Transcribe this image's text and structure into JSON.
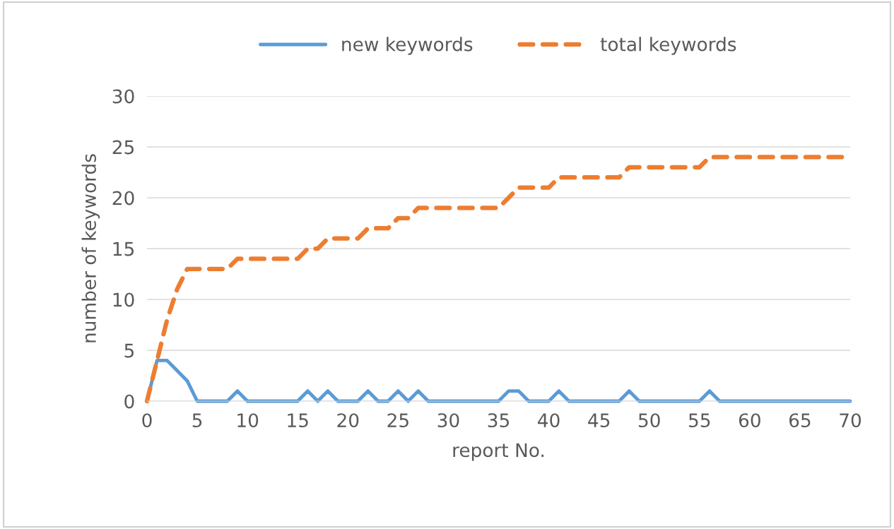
{
  "chart_data": {
    "type": "line",
    "xlabel": "report No.",
    "ylabel": "number of keywords",
    "x": [
      0,
      1,
      2,
      3,
      4,
      5,
      6,
      7,
      8,
      9,
      10,
      11,
      12,
      13,
      14,
      15,
      16,
      17,
      18,
      19,
      20,
      21,
      22,
      23,
      24,
      25,
      26,
      27,
      28,
      29,
      30,
      31,
      32,
      33,
      34,
      35,
      36,
      37,
      38,
      39,
      40,
      41,
      42,
      43,
      44,
      45,
      46,
      47,
      48,
      49,
      50,
      51,
      52,
      53,
      54,
      55,
      56,
      57,
      58,
      59,
      60,
      61,
      62,
      63,
      64,
      65,
      66,
      67,
      68,
      69,
      70
    ],
    "series": [
      {
        "name": "new keywords",
        "color": "#5b9bd5",
        "line_style": "solid",
        "values": [
          0,
          4,
          4,
          3,
          2,
          0,
          0,
          0,
          0,
          1,
          0,
          0,
          0,
          0,
          0,
          0,
          1,
          0,
          1,
          0,
          0,
          0,
          1,
          0,
          0,
          1,
          0,
          1,
          0,
          0,
          0,
          0,
          0,
          0,
          0,
          0,
          1,
          1,
          0,
          0,
          0,
          1,
          0,
          0,
          0,
          0,
          0,
          0,
          1,
          0,
          0,
          0,
          0,
          0,
          0,
          0,
          1,
          0,
          0,
          0,
          0,
          0,
          0,
          0,
          0,
          0,
          0,
          0,
          0,
          0,
          0
        ]
      },
      {
        "name": "total keywords",
        "color": "#ed7d31",
        "line_style": "dashed",
        "values": [
          0,
          4,
          8,
          11,
          13,
          13,
          13,
          13,
          13,
          14,
          14,
          14,
          14,
          14,
          14,
          14,
          15,
          15,
          16,
          16,
          16,
          16,
          17,
          17,
          17,
          18,
          18,
          19,
          19,
          19,
          19,
          19,
          19,
          19,
          19,
          19,
          20,
          21,
          21,
          21,
          21,
          22,
          22,
          22,
          22,
          22,
          22,
          22,
          23,
          23,
          23,
          23,
          23,
          23,
          23,
          23,
          24,
          24,
          24,
          24,
          24,
          24,
          24,
          24,
          24,
          24,
          24,
          24,
          24,
          24,
          24
        ]
      }
    ],
    "xlim": [
      0,
      70
    ],
    "xticks": [
      0,
      5,
      10,
      15,
      20,
      25,
      30,
      35,
      40,
      45,
      50,
      55,
      60,
      65,
      70
    ],
    "ylim": [
      0,
      30
    ],
    "yticks": [
      0,
      5,
      10,
      15,
      20,
      25,
      30
    ],
    "grid": "y",
    "legend": "top",
    "marker": "none"
  }
}
